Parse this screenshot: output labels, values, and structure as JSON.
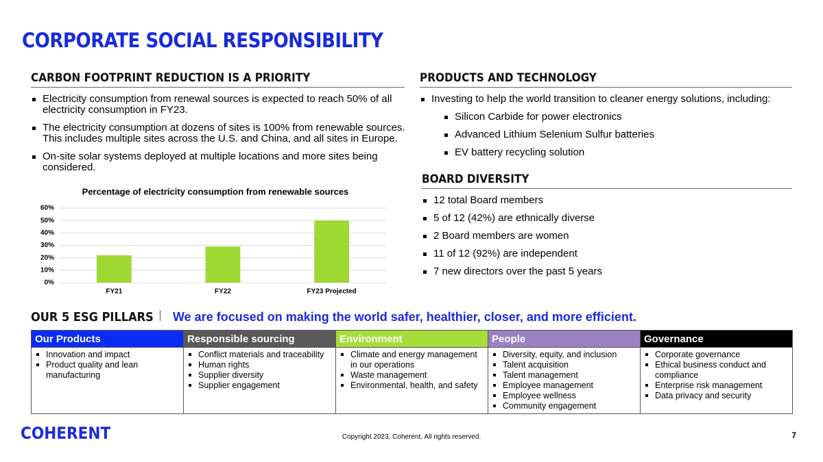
{
  "title": "CORPORATE SOCIAL RESPONSIBILITY",
  "carbon": {
    "heading": "CARBON FOOTPRINT REDUCTION IS A PRIORITY",
    "bullets": [
      "Electricity consumption from renewal sources is expected to reach 50% of all electricity consumption in FY23.",
      "The electricity consumption at dozens of sites is 100% from renewable sources. This includes multiple sites across the U.S. and China, and all sites in Europe.",
      "On-site solar systems deployed at multiple locations and more sites being considered."
    ]
  },
  "chart_data": {
    "type": "bar",
    "title": "Percentage of electricity consumption from renewable sources",
    "categories": [
      "FY21",
      "FY22",
      "FY23 Projected"
    ],
    "values": [
      22,
      29,
      50
    ],
    "color": "#9fd833",
    "ylim": [
      0,
      60
    ],
    "yticks": [
      {
        "value": 0,
        "label": "0%"
      },
      {
        "value": 10,
        "label": "10%"
      },
      {
        "value": 20,
        "label": "20%"
      },
      {
        "value": 30,
        "label": "30%"
      },
      {
        "value": 40,
        "label": "40%"
      },
      {
        "value": 50,
        "label": "50%"
      },
      {
        "value": 60,
        "label": "60%"
      }
    ],
    "grid": true
  },
  "products": {
    "heading": "PRODUCTS AND TECHNOLOGY",
    "bullets": [
      "Investing to help the world transition to cleaner energy solutions, including:"
    ],
    "sub_bullets": [
      "Silicon Carbide for power electronics",
      "Advanced Lithium Selenium Sulfur batteries",
      "EV battery recycling solution"
    ]
  },
  "board": {
    "heading": "BOARD DIVERSITY",
    "bullets": [
      "12 total Board members",
      "5 of 12 (42%) are ethnically diverse",
      "2 Board members are women",
      "11 of 12 (92%) are independent",
      "7 new directors over the past 5 years"
    ]
  },
  "esg": {
    "heading": "OUR 5 ESG PILLARS",
    "tagline": "We are focused on making the world safer, healthier, closer, and more efficient.",
    "columns": [
      {
        "header": "Our Products",
        "color": "#0b2cf5",
        "items": [
          "Innovation and impact",
          "Product quality and lean manufacturing"
        ]
      },
      {
        "header": "Responsible sourcing",
        "color": "#595959",
        "items": [
          "Conflict materials and traceability",
          "Human rights",
          "Supplier diversity",
          "Supplier engagement"
        ]
      },
      {
        "header": "Environment",
        "color": "#a5de3a",
        "items": [
          "Climate and energy management in our operations",
          "Waste management",
          "Environmental, health, and safety"
        ]
      },
      {
        "header": "People",
        "color": "#9b80c2",
        "items": [
          "Diversity, equity, and inclusion",
          "Talent acquisition",
          "Talent management",
          "Employee management",
          "Employee wellness",
          "Community engagement"
        ]
      },
      {
        "header": "Governance",
        "color": "#000000",
        "items": [
          "Corporate governance",
          "Ethical business conduct and compliance",
          "Enterprise risk management",
          "Data privacy and security"
        ]
      }
    ]
  },
  "footer": {
    "logo": "COHERENT",
    "copyright": "Copyright 2023, Coherent. All rights reserved.",
    "page": 7
  }
}
